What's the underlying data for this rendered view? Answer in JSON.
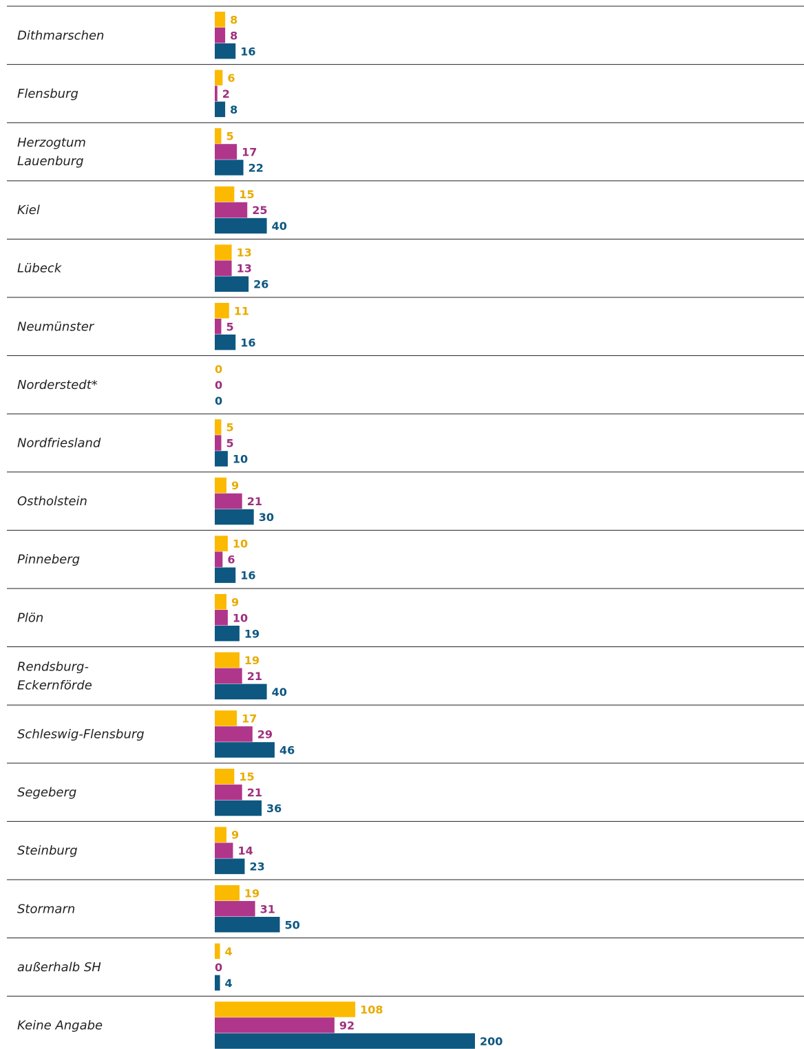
{
  "chart_data": {
    "type": "bar",
    "orientation": "horizontal",
    "title": "",
    "xlabel": "",
    "ylabel": "",
    "grid": false,
    "legend": "none",
    "categories": [
      [
        "Dithmarschen"
      ],
      [
        "Flensburg"
      ],
      [
        "Herzogtum",
        "Lauenburg"
      ],
      [
        "Kiel"
      ],
      [
        "Lübeck"
      ],
      [
        "Neumünster"
      ],
      [
        "Norderstedt*"
      ],
      [
        "Nordfriesland"
      ],
      [
        "Ostholstein"
      ],
      [
        "Pinneberg"
      ],
      [
        "Plön"
      ],
      [
        "Rendsburg-",
        "Eckernförde"
      ],
      [
        "Schleswig-Flensburg"
      ],
      [
        "Segeberg"
      ],
      [
        "Steinburg"
      ],
      [
        "Stormarn"
      ],
      [
        "außerhalb SH"
      ],
      [
        "Keine Angabe"
      ]
    ],
    "series": [
      {
        "values": [
          8,
          6,
          5,
          15,
          13,
          11,
          0,
          5,
          9,
          10,
          9,
          19,
          17,
          15,
          9,
          19,
          4,
          108
        ]
      },
      {
        "values": [
          8,
          2,
          17,
          25,
          13,
          5,
          0,
          5,
          21,
          6,
          10,
          21,
          29,
          21,
          14,
          31,
          0,
          92
        ]
      },
      {
        "values": [
          16,
          8,
          22,
          40,
          26,
          16,
          0,
          10,
          30,
          16,
          19,
          40,
          46,
          36,
          23,
          50,
          4,
          200
        ]
      }
    ],
    "xlim": [
      0,
      200
    ]
  },
  "colors": {
    "series": [
      "#fbb900",
      "#b0368b",
      "#0d5781"
    ],
    "labels": [
      "#e8ab00",
      "#9e2f7e",
      "#0d5781"
    ],
    "divider": "#231f20",
    "region_text": "#231f20"
  }
}
